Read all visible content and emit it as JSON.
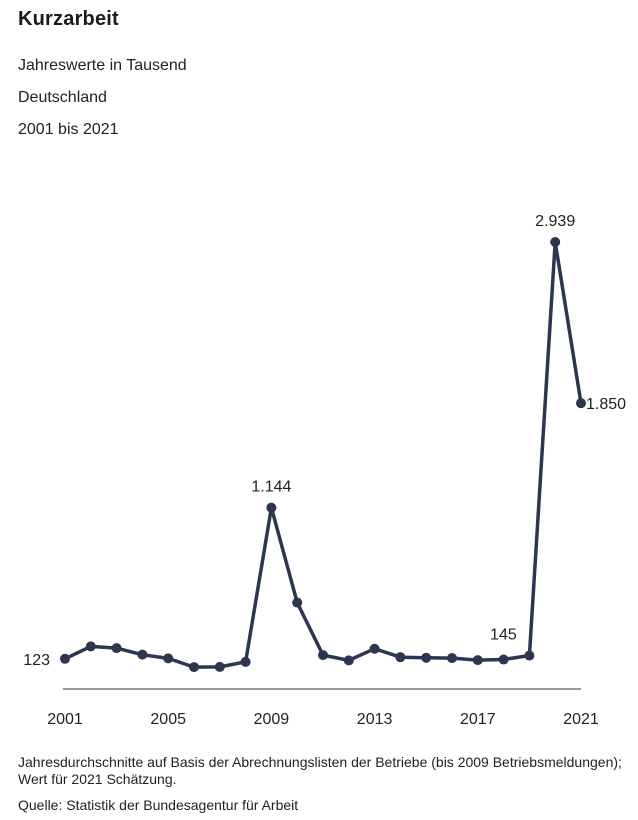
{
  "header": {
    "title": "Kurzarbeit",
    "subtitles": [
      "Jahreswerte in Tausend",
      "Deutschland",
      "2001 bis 2021"
    ]
  },
  "footer": {
    "note": "Jahresdurchschnitte auf Basis der Abrechnungslisten der Betriebe (bis 2009 Betriebsmeldungen); Wert für 2021 Schätzung.",
    "source": "Quelle: Statistik der Bundesagentur für Arbeit"
  },
  "colors": {
    "line": "#2d3650",
    "axis": "#333333",
    "text": "#222222"
  },
  "chart_data": {
    "type": "line",
    "title": "Kurzarbeit",
    "x": [
      2001,
      2002,
      2003,
      2004,
      2005,
      2006,
      2007,
      2008,
      2009,
      2010,
      2011,
      2012,
      2013,
      2014,
      2015,
      2016,
      2017,
      2018,
      2019,
      2020,
      2021
    ],
    "series": [
      {
        "values": [
          123,
          207,
          195,
          151,
          126,
          67,
          68,
          102,
          1144,
          503,
          148,
          112,
          191,
          134,
          130,
          128,
          114,
          118,
          145,
          2939,
          1850
        ]
      }
    ],
    "x_tick_labels": [
      "2001",
      "2005",
      "2009",
      "2013",
      "2017",
      "2021"
    ],
    "x_tick_years": [
      2001,
      2005,
      2009,
      2013,
      2017,
      2021
    ],
    "data_labels": [
      {
        "x": 2001,
        "text": "123",
        "position": "left"
      },
      {
        "x": 2009,
        "text": "1.144",
        "position": "above"
      },
      {
        "x": 2019,
        "text": "145",
        "position": "above-left"
      },
      {
        "x": 2020,
        "text": "2.939",
        "position": "above"
      },
      {
        "x": 2021,
        "text": "1.850",
        "position": "right"
      }
    ],
    "xlim": [
      2001,
      2021
    ],
    "ylim": [
      0,
      3000
    ],
    "grid": false,
    "legend": "none"
  }
}
